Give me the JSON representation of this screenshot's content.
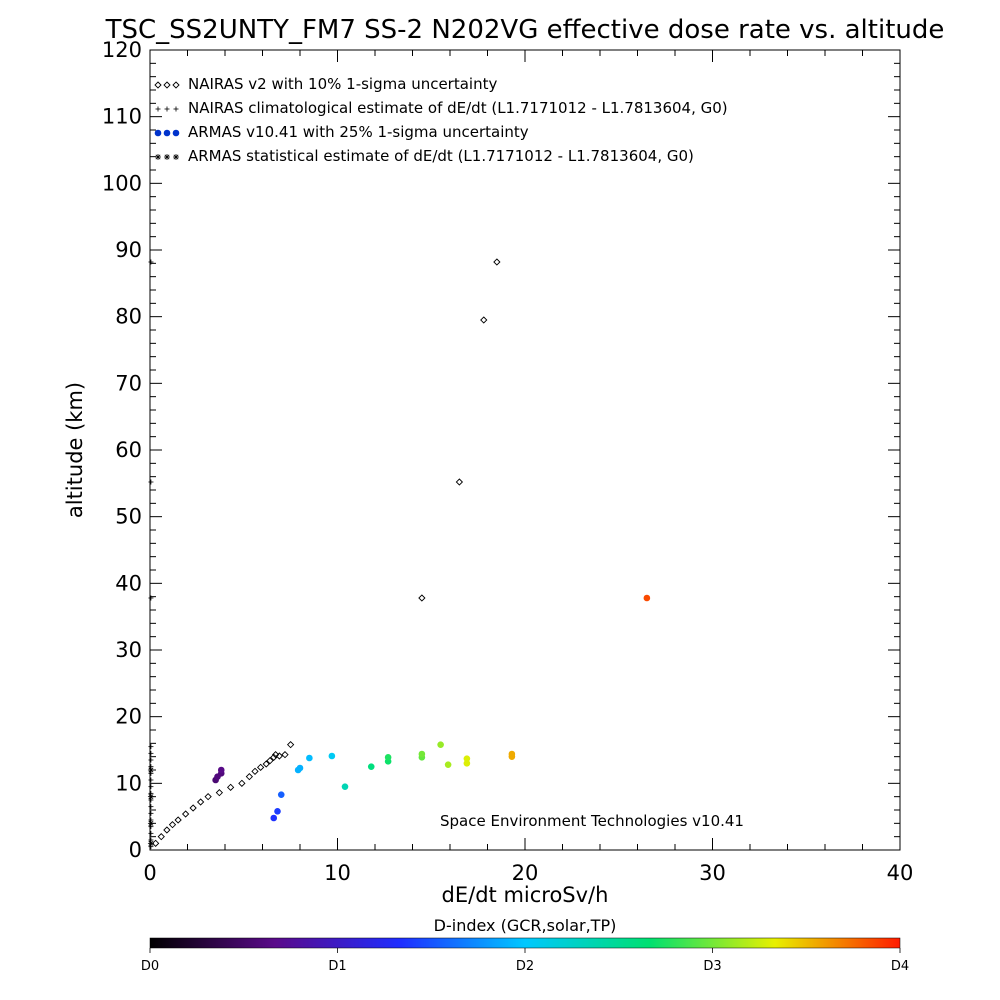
{
  "chart_data": {
    "type": "scatter",
    "title": "TSC_SS2UNTY_FM7 SS-2 N202VG effective dose rate vs. altitude",
    "xlabel": "dE/dt microSv/h",
    "ylabel": "altitude (km)",
    "xlim": [
      0,
      40
    ],
    "ylim": [
      0,
      120
    ],
    "x_ticks": [
      "0",
      "10",
      "20",
      "30",
      "40"
    ],
    "y_ticks": [
      "0",
      "10",
      "20",
      "30",
      "40",
      "50",
      "60",
      "70",
      "80",
      "90",
      "100",
      "110",
      "120"
    ],
    "grid": false,
    "legend_position": "top-left",
    "legend": [
      {
        "marker": "diamond",
        "symbol": "◇◇◇",
        "label": "NAIRAS v2 with 10% 1-sigma uncertainty"
      },
      {
        "marker": "plus",
        "symbol": "+++",
        "label": "NAIRAS climatological estimate of dE/dt (L1.7171012 - L1.7813604, G0)"
      },
      {
        "marker": "filled-dot",
        "symbol": "●●●",
        "label": "ARMAS v10.41 with 25% 1-sigma uncertainty"
      },
      {
        "marker": "asterisk",
        "symbol": "***",
        "label": "ARMAS statistical estimate of dE/dt (L1.7171012 - L1.7813604, G0)"
      }
    ],
    "annotation": "Space Environment Technologies v10.41",
    "series": [
      {
        "marker": "diamond",
        "points": [
          [
            0.3,
            1.0
          ],
          [
            0.6,
            2.0
          ],
          [
            0.9,
            3.0
          ],
          [
            1.2,
            3.8
          ],
          [
            1.5,
            4.5
          ],
          [
            1.9,
            5.4
          ],
          [
            2.3,
            6.3
          ],
          [
            2.7,
            7.2
          ],
          [
            3.1,
            8.0
          ],
          [
            3.7,
            8.6
          ],
          [
            4.3,
            9.4
          ],
          [
            4.9,
            10.0
          ],
          [
            5.3,
            11.0
          ],
          [
            5.6,
            11.8
          ],
          [
            5.9,
            12.4
          ],
          [
            6.2,
            12.9
          ],
          [
            6.4,
            13.4
          ],
          [
            6.6,
            13.9
          ],
          [
            6.7,
            14.3
          ],
          [
            6.9,
            14.1
          ],
          [
            7.2,
            14.3
          ],
          [
            7.5,
            15.8
          ],
          [
            14.5,
            37.8
          ],
          [
            16.5,
            55.2
          ],
          [
            17.8,
            79.5
          ],
          [
            18.5,
            88.2
          ]
        ]
      },
      {
        "marker": "plus",
        "points": [
          [
            0.05,
            0.5
          ],
          [
            0.05,
            1.5
          ],
          [
            0.05,
            2.5
          ],
          [
            0.05,
            3.5
          ],
          [
            0.05,
            4.5
          ],
          [
            0.05,
            5.5
          ],
          [
            0.05,
            6.5
          ],
          [
            0.05,
            7.5
          ],
          [
            0.05,
            8.5
          ],
          [
            0.05,
            9.5
          ],
          [
            0.05,
            10.5
          ],
          [
            0.05,
            11.5
          ],
          [
            0.05,
            12.5
          ],
          [
            0.05,
            13.5
          ],
          [
            0.05,
            14.5
          ],
          [
            0.05,
            15.5
          ],
          [
            0.05,
            37.8
          ],
          [
            0.05,
            55.2
          ],
          [
            0.05,
            88.2
          ]
        ]
      },
      {
        "marker": "filled-dot",
        "color_by": "d_index",
        "points": [
          [
            3.5,
            10.5,
            0.55
          ],
          [
            3.6,
            11.0,
            0.6
          ],
          [
            3.8,
            11.5,
            0.6
          ],
          [
            3.8,
            12.0,
            0.65
          ],
          [
            6.6,
            4.8,
            1.35
          ],
          [
            6.8,
            5.8,
            1.4
          ],
          [
            7.0,
            8.3,
            1.55
          ],
          [
            7.9,
            12.0,
            1.9
          ],
          [
            8.0,
            12.3,
            1.9
          ],
          [
            8.5,
            13.8,
            1.95
          ],
          [
            9.7,
            14.1,
            2.05
          ],
          [
            10.4,
            9.5,
            2.35
          ],
          [
            11.8,
            12.5,
            2.6
          ],
          [
            12.7,
            13.3,
            2.7
          ],
          [
            12.7,
            13.9,
            2.75
          ],
          [
            14.5,
            13.9,
            2.95
          ],
          [
            14.5,
            14.4,
            3.0
          ],
          [
            15.5,
            15.8,
            3.1
          ],
          [
            15.9,
            12.8,
            3.15
          ],
          [
            16.9,
            13.0,
            3.3
          ],
          [
            16.9,
            13.7,
            3.3
          ],
          [
            19.3,
            14.0,
            3.55
          ],
          [
            19.3,
            14.4,
            3.55
          ],
          [
            26.5,
            37.8,
            3.85
          ]
        ]
      },
      {
        "marker": "asterisk",
        "points": [
          [
            0.05,
            1.0
          ],
          [
            0.05,
            4.0
          ],
          [
            0.05,
            8.0
          ],
          [
            0.05,
            12.0
          ]
        ]
      }
    ],
    "colorbar": {
      "title": "D-index (GCR,solar,TP)",
      "tick_labels": [
        "D0",
        "D1",
        "D2",
        "D3",
        "D4"
      ],
      "tick_positions": [
        0,
        1,
        2,
        3,
        4
      ],
      "range": [
        0,
        4
      ],
      "colors": [
        "#000000",
        "#5a0a8a",
        "#1f2dff",
        "#00c8ff",
        "#00e070",
        "#e8f000",
        "#ff1a00"
      ]
    }
  }
}
